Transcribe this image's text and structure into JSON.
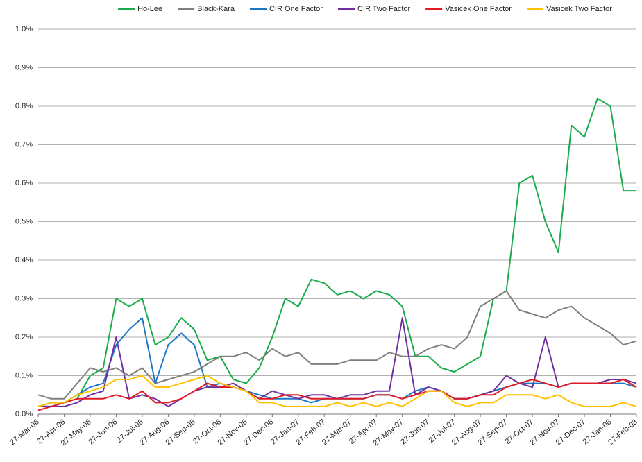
{
  "chart_data": {
    "type": "line",
    "categories": [
      "27-Mar-06",
      null,
      "27-Apr-06",
      null,
      "27-May-06",
      null,
      "27-Jun-06",
      null,
      "27-Jul-06",
      null,
      "27-Aug-06",
      null,
      "27-Sep-06",
      null,
      "27-Oct-06",
      null,
      "27-Nov-06",
      null,
      "27-Dec-06",
      null,
      "27-Jan-07",
      null,
      "27-Feb-07",
      null,
      "27-Mar-07",
      null,
      "27-Apr-07",
      null,
      "27-May-07",
      null,
      "27-Jun-07",
      null,
      "27-Jul-07",
      null,
      "27-Aug-07",
      null,
      "27-Sep-07",
      null,
      "27-Oct-07",
      null,
      "27-Nov-07",
      null,
      "27-Dec-07",
      null,
      "27-Jan-08",
      null,
      "27-Feb-08"
    ],
    "series": [
      {
        "name": "Ho-Lee",
        "color": "#1aab4b",
        "values": [
          0.02,
          0.03,
          0.03,
          0.04,
          0.1,
          0.12,
          0.3,
          0.28,
          0.3,
          0.18,
          0.2,
          0.25,
          0.22,
          0.14,
          0.15,
          0.09,
          0.08,
          0.12,
          0.2,
          0.3,
          0.28,
          0.35,
          0.34,
          0.31,
          0.32,
          0.3,
          0.32,
          0.31,
          0.28,
          0.15,
          0.15,
          0.12,
          0.11,
          0.13,
          0.15,
          0.3,
          0.32,
          0.6,
          0.62,
          0.5,
          0.42,
          0.75,
          0.72,
          0.82,
          0.8,
          0.58,
          0.58
        ]
      },
      {
        "name": "Black-Kara",
        "color": "#7f7f7f",
        "values": [
          0.05,
          0.04,
          0.04,
          0.08,
          0.12,
          0.11,
          0.12,
          0.1,
          0.12,
          0.08,
          0.09,
          0.1,
          0.11,
          0.13,
          0.15,
          0.15,
          0.16,
          0.14,
          0.17,
          0.15,
          0.16,
          0.13,
          0.13,
          0.13,
          0.14,
          0.14,
          0.14,
          0.16,
          0.15,
          0.15,
          0.17,
          0.18,
          0.17,
          0.2,
          0.28,
          0.3,
          0.32,
          0.27,
          0.26,
          0.25,
          0.27,
          0.28,
          0.25,
          0.23,
          0.21,
          0.18,
          0.19
        ]
      },
      {
        "name": "CIR One Factor",
        "color": "#1f77c4",
        "values": [
          0.02,
          0.02,
          0.03,
          0.05,
          0.07,
          0.08,
          0.18,
          0.22,
          0.25,
          0.08,
          0.18,
          0.21,
          0.18,
          0.07,
          0.08,
          0.07,
          0.06,
          0.05,
          0.04,
          0.04,
          0.04,
          0.03,
          0.04,
          0.04,
          0.04,
          0.04,
          0.05,
          0.05,
          0.04,
          0.06,
          0.07,
          0.06,
          0.04,
          0.04,
          0.05,
          0.06,
          0.07,
          0.08,
          0.08,
          0.08,
          0.07,
          0.08,
          0.08,
          0.08,
          0.08,
          0.08,
          0.07
        ]
      },
      {
        "name": "CIR Two Factor",
        "color": "#7030a0",
        "values": [
          0.02,
          0.02,
          0.02,
          0.03,
          0.05,
          0.06,
          0.2,
          0.04,
          0.05,
          0.04,
          0.02,
          0.04,
          0.06,
          0.07,
          0.07,
          0.08,
          0.06,
          0.04,
          0.06,
          0.05,
          0.04,
          0.05,
          0.05,
          0.04,
          0.05,
          0.05,
          0.06,
          0.06,
          0.25,
          0.05,
          0.07,
          0.06,
          0.04,
          0.04,
          0.05,
          0.06,
          0.1,
          0.08,
          0.07,
          0.2,
          0.07,
          0.08,
          0.08,
          0.08,
          0.09,
          0.09,
          0.08
        ]
      },
      {
        "name": "Vasicek One Factor",
        "color": "#e01b24",
        "values": [
          0.01,
          0.02,
          0.03,
          0.04,
          0.04,
          0.04,
          0.05,
          0.04,
          0.06,
          0.03,
          0.03,
          0.04,
          0.06,
          0.08,
          0.07,
          0.07,
          0.06,
          0.04,
          0.04,
          0.05,
          0.05,
          0.04,
          0.04,
          0.04,
          0.04,
          0.04,
          0.05,
          0.05,
          0.04,
          0.05,
          0.06,
          0.06,
          0.04,
          0.04,
          0.05,
          0.05,
          0.07,
          0.08,
          0.09,
          0.08,
          0.07,
          0.08,
          0.08,
          0.08,
          0.08,
          0.09,
          0.07
        ]
      },
      {
        "name": "Vasicek Two Factor",
        "color": "#ffc000",
        "values": [
          0.02,
          0.03,
          0.03,
          0.05,
          0.06,
          0.07,
          0.09,
          0.09,
          0.1,
          0.07,
          0.07,
          0.08,
          0.09,
          0.1,
          0.08,
          0.07,
          0.06,
          0.03,
          0.03,
          0.02,
          0.02,
          0.02,
          0.02,
          0.03,
          0.02,
          0.03,
          0.02,
          0.03,
          0.02,
          0.04,
          0.06,
          0.06,
          0.03,
          0.02,
          0.03,
          0.03,
          0.05,
          0.05,
          0.05,
          0.04,
          0.05,
          0.03,
          0.02,
          0.02,
          0.02,
          0.03,
          0.02
        ]
      }
    ],
    "ylim": [
      0,
      1.0
    ],
    "yticks": [
      {
        "value": 0,
        "label": "0.0%"
      },
      {
        "value": 0.1,
        "label": "0.1%"
      },
      {
        "value": 0.2,
        "label": "0.2%"
      },
      {
        "value": 0.3,
        "label": "0.3%"
      },
      {
        "value": 0.4,
        "label": "0.4%"
      },
      {
        "value": 0.5,
        "label": "0.5%"
      },
      {
        "value": 0.6,
        "label": "0.6%"
      },
      {
        "value": 0.7,
        "label": "0.7%"
      },
      {
        "value": 0.8,
        "label": "0.8%"
      },
      {
        "value": 0.9,
        "label": "0.9%"
      },
      {
        "value": 1.0,
        "label": "1.0%"
      }
    ],
    "grid": true,
    "legend": "top"
  }
}
